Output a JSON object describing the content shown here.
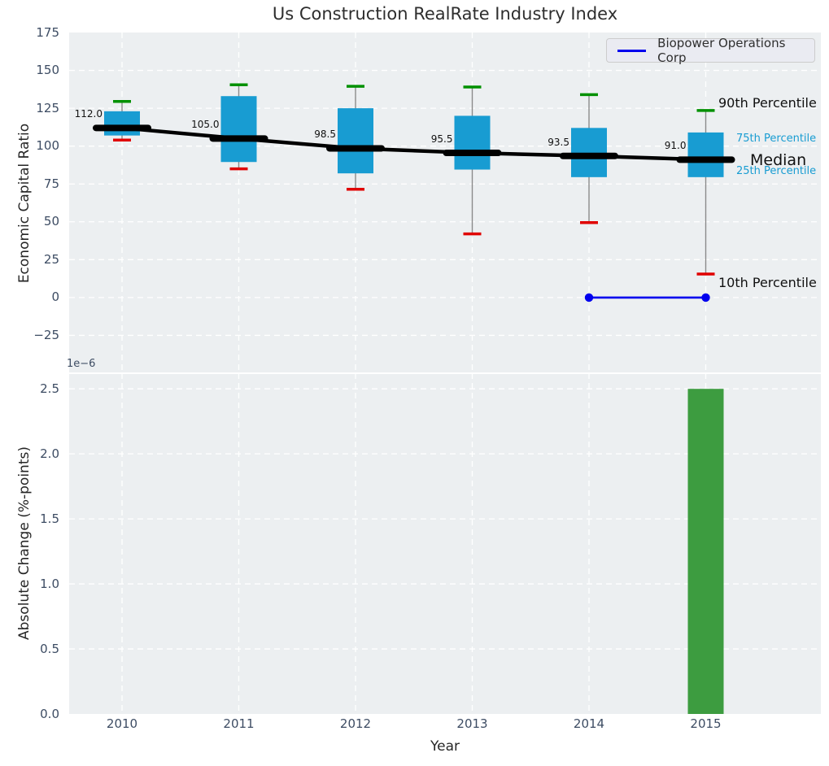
{
  "title": "Us Construction RealRate Industry Index",
  "legend": {
    "label": "Biopower Operations Corp"
  },
  "annotations": {
    "p90": "90th Percentile",
    "p75": "75th Percentile",
    "median": "Median",
    "p25": "25th Percentile",
    "p10": "10th Percentile"
  },
  "colors": {
    "axes_bg": "#eceff1",
    "grid": "#ffffff",
    "box_fill": "#189cd2",
    "whisker": "#8a8a8a",
    "cap_top": "#009000",
    "cap_bottom": "#e00000",
    "median_line": "#000000",
    "overlay_line": "#0000ee",
    "bar_fill": "#3d9c40",
    "tick_text": "#3d4c63",
    "title_text": "#2e2e2e"
  },
  "chart_data": [
    {
      "type": "boxplot",
      "title": "Us Construction RealRate Industry Index",
      "xlabel": "Year",
      "ylabel": "Economic Capital Ratio",
      "categories": [
        "2010",
        "2011",
        "2012",
        "2013",
        "2014",
        "2015"
      ],
      "ylim": [
        -50,
        175
      ],
      "yticks": [
        175,
        150,
        125,
        100,
        75,
        50,
        25,
        0,
        -25
      ],
      "ytick_labels": [
        "175",
        "150",
        "125",
        "100",
        "75",
        "50",
        "25",
        "0",
        "−25"
      ],
      "grid": true,
      "boxes": [
        {
          "category": "2010",
          "p10": 104,
          "p25": 107,
          "median": 112.0,
          "p75": 123,
          "p90": 129.5,
          "median_label": "112.0"
        },
        {
          "category": "2011",
          "p10": 85,
          "p25": 89.5,
          "median": 105.0,
          "p75": 133,
          "p90": 140.5,
          "median_label": "105.0"
        },
        {
          "category": "2012",
          "p10": 71.5,
          "p25": 82,
          "median": 98.5,
          "p75": 125,
          "p90": 139.5,
          "median_label": "98.5"
        },
        {
          "category": "2013",
          "p10": 42,
          "p25": 84.5,
          "median": 95.5,
          "p75": 120,
          "p90": 139,
          "median_label": "95.5"
        },
        {
          "category": "2014",
          "p10": 49.5,
          "p25": 79.5,
          "median": 93.5,
          "p75": 112,
          "p90": 134,
          "median_label": "93.5"
        },
        {
          "category": "2015",
          "p10": 15.5,
          "p25": 79.5,
          "median": 91.0,
          "p75": 109,
          "p90": 123.5,
          "median_label": "91.0"
        }
      ],
      "overlay_series": {
        "name": "Biopower Operations Corp",
        "points": [
          {
            "category": "2014",
            "y": 0
          },
          {
            "category": "2015",
            "y": 0
          }
        ]
      },
      "legend_position": "upper right"
    },
    {
      "type": "bar",
      "xlabel": "Year",
      "ylabel": "Absolute Change (%-points)",
      "offset_label": "1e−6",
      "categories": [
        "2010",
        "2011",
        "2012",
        "2013",
        "2014",
        "2015"
      ],
      "values_1e6": [
        0,
        0,
        0,
        0,
        0,
        2.5
      ],
      "ylim_1e6": [
        0,
        2.62
      ],
      "yticks_1e6": [
        0,
        0.5,
        1.0,
        1.5,
        2.0,
        2.5
      ],
      "ytick_labels": [
        "0.0",
        "0.5",
        "1.0",
        "1.5",
        "2.0",
        "2.5"
      ],
      "grid": true
    }
  ]
}
